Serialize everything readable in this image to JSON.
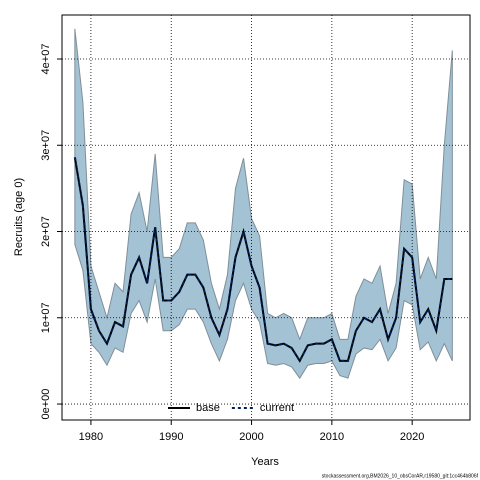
{
  "chart_data": {
    "type": "line",
    "xlabel": "Years",
    "ylabel": "Recruits (age 0)",
    "footer": "stockassessment.org,BM2026_10_obsCorAR,r19580_git:1cc464b806f",
    "x": [
      1978,
      1979,
      1980,
      1981,
      1982,
      1983,
      1984,
      1985,
      1986,
      1987,
      1988,
      1989,
      1990,
      1991,
      1992,
      1993,
      1994,
      1995,
      1996,
      1997,
      1998,
      1999,
      2000,
      2001,
      2002,
      2003,
      2004,
      2005,
      2006,
      2007,
      2008,
      2009,
      2010,
      2011,
      2012,
      2013,
      2014,
      2015,
      2016,
      2017,
      2018,
      2019,
      2020,
      2021,
      2022,
      2023,
      2024,
      2025
    ],
    "band": {
      "color": "#a3c2d4",
      "edge": "#7f8f99",
      "upper": [
        43500000.0,
        35000000.0,
        16000000.0,
        13000000.0,
        10000000.0,
        14000000.0,
        13000000.0,
        22000000.0,
        24500000.0,
        20000000.0,
        29000000.0,
        17000000.0,
        17000000.0,
        18000000.0,
        21000000.0,
        21000000.0,
        19000000.0,
        14000000.0,
        11000000.0,
        15000000.0,
        25000000.0,
        28500000.0,
        21500000.0,
        19500000.0,
        10500000.0,
        10000000.0,
        10500000.0,
        10000000.0,
        7500000.0,
        10000000.0,
        10000000.0,
        10000000.0,
        10500000.0,
        7500000.0,
        7500000.0,
        12500000.0,
        14500000.0,
        14000000.0,
        16000000.0,
        10500000.0,
        14000000.0,
        26000000.0,
        25500000.0,
        14500000.0,
        17000000.0,
        14500000.0,
        30000000.0,
        41000000.0
      ],
      "lower": [
        18500000.0,
        15500000.0,
        7000000.0,
        6000000.0,
        4500000.0,
        6500000.0,
        6000000.0,
        10500000.0,
        12000000.0,
        9500000.0,
        14500000.0,
        8500000.0,
        8500000.0,
        9200000.0,
        11000000.0,
        11000000.0,
        9500000.0,
        7000000.0,
        5000000.0,
        7500000.0,
        12000000.0,
        14000000.0,
        11000000.0,
        9500000.0,
        4700000.0,
        4500000.0,
        4700000.0,
        4300000.0,
        3000000.0,
        4500000.0,
        4700000.0,
        4700000.0,
        5000000.0,
        3300000.0,
        3000000.0,
        5800000.0,
        6500000.0,
        6300000.0,
        7500000.0,
        5000000.0,
        6500000.0,
        12000000.0,
        11500000.0,
        6300000.0,
        7200000.0,
        5000000.0,
        7000000.0,
        5000000.0
      ]
    },
    "series": [
      {
        "name": "base",
        "color": "#000000",
        "dash": false,
        "values": [
          28600000.0,
          23000000.0,
          11000000.0,
          8500000.0,
          7000000.0,
          9500000.0,
          9000000.0,
          15000000.0,
          17000000.0,
          14000000.0,
          20500000.0,
          12000000.0,
          12000000.0,
          13000000.0,
          15000000.0,
          15000000.0,
          13500000.0,
          10000000.0,
          8000000.0,
          11000000.0,
          17000000.0,
          20000000.0,
          16000000.0,
          13500000.0,
          7000000.0,
          6800000.0,
          7000000.0,
          6500000.0,
          5000000.0,
          6800000.0,
          7000000.0,
          7000000.0,
          7500000.0,
          5000000.0,
          5000000.0,
          8500000.0,
          10000000.0,
          9500000.0,
          11000000.0,
          7500000.0,
          10000000.0,
          18000000.0,
          17000000.0,
          9500000.0,
          11000000.0,
          8500000.0,
          14500000.0,
          14500000.0
        ]
      },
      {
        "name": "current",
        "color": "#00205b",
        "dash": true,
        "values": [
          28600000.0,
          23000000.0,
          11000000.0,
          8500000.0,
          7000000.0,
          9500000.0,
          9000000.0,
          15000000.0,
          17000000.0,
          14000000.0,
          20500000.0,
          12000000.0,
          12000000.0,
          13000000.0,
          15000000.0,
          15000000.0,
          13500000.0,
          10000000.0,
          8000000.0,
          11000000.0,
          17000000.0,
          20000000.0,
          16000000.0,
          13500000.0,
          7000000.0,
          6800000.0,
          7000000.0,
          6500000.0,
          5000000.0,
          6800000.0,
          7000000.0,
          7000000.0,
          7500000.0,
          5000000.0,
          5000000.0,
          8500000.0,
          10000000.0,
          9500000.0,
          11000000.0,
          7500000.0,
          10000000.0,
          18000000.0,
          17000000.0,
          9500000.0,
          11000000.0,
          8500000.0,
          14500000.0,
          14500000.0
        ]
      }
    ],
    "xlim": [
      1976.4,
      2027.2
    ],
    "ylim": [
      -1850000,
      45100000
    ],
    "xticks": [
      1980,
      1990,
      2000,
      2010,
      2020
    ],
    "yticks": [
      {
        "value": 0,
        "label": "0e+00"
      },
      {
        "value": 10000000,
        "label": "1e+07"
      },
      {
        "value": 20000000,
        "label": "2e+07"
      },
      {
        "value": 30000000,
        "label": "3e+07"
      },
      {
        "value": 40000000,
        "label": "4e+07"
      }
    ],
    "grid": true,
    "legend": "bottom"
  }
}
